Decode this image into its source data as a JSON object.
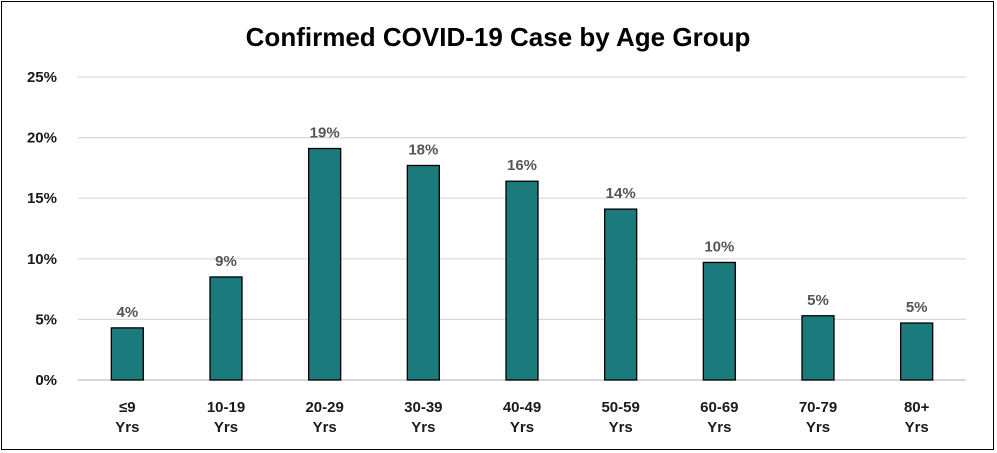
{
  "chart_data": {
    "type": "bar",
    "title": "Confirmed COVID-19 Case by Age Group",
    "categories": [
      [
        "≤9",
        "Yrs"
      ],
      [
        "10-19",
        "Yrs"
      ],
      [
        "20-29",
        "Yrs"
      ],
      [
        "30-39",
        "Yrs"
      ],
      [
        "40-49",
        "Yrs"
      ],
      [
        "50-59",
        "Yrs"
      ],
      [
        "60-69",
        "Yrs"
      ],
      [
        "70-79",
        "Yrs"
      ],
      [
        "80+",
        "Yrs"
      ]
    ],
    "values": [
      4.3,
      8.5,
      19.1,
      17.7,
      16.4,
      14.1,
      9.7,
      5.3,
      4.7
    ],
    "data_labels": [
      "4%",
      "9%",
      "19%",
      "18%",
      "16%",
      "14%",
      "10%",
      "5%",
      "5%"
    ],
    "y_ticks": [
      0,
      5,
      10,
      15,
      20,
      25
    ],
    "y_tick_labels": [
      "0%",
      "5%",
      "10%",
      "15%",
      "20%",
      "25%"
    ],
    "ylim": [
      0,
      25
    ],
    "xlabel": "",
    "ylabel": "",
    "grid": true,
    "legend": "none",
    "bar_color": "#1b7b7c",
    "bar_edge_color": "#000000",
    "grid_color": "#d9d9d9"
  }
}
